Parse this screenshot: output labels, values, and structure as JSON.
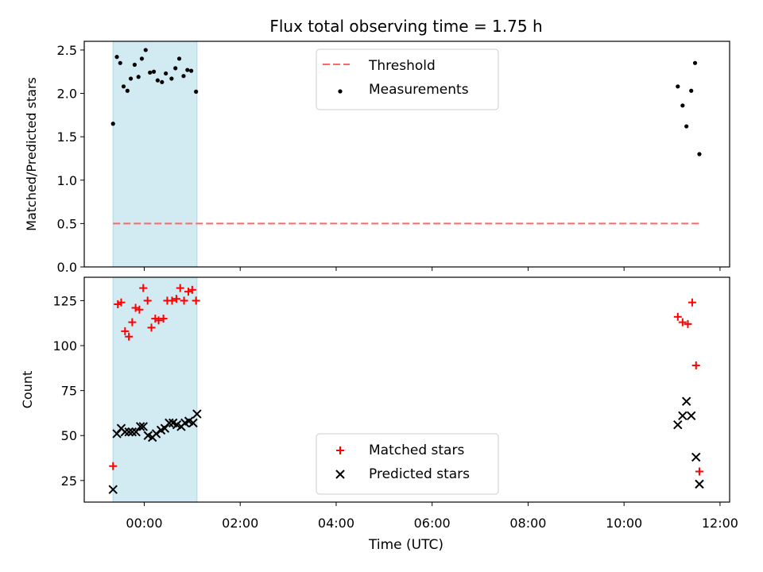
{
  "chart_data": {
    "title": "Flux total observing time = 1.75 h",
    "x_axis": {
      "label": "Time (UTC)",
      "unit": "hours since 00:00 UTC",
      "range": [
        -1.25,
        12.2
      ],
      "ticks": [
        {
          "value": 0,
          "label": "00:00"
        },
        {
          "value": 2,
          "label": "02:00"
        },
        {
          "value": 4,
          "label": "04:00"
        },
        {
          "value": 6,
          "label": "06:00"
        },
        {
          "value": 8,
          "label": "08:00"
        },
        {
          "value": 10,
          "label": "10:00"
        },
        {
          "value": 12,
          "label": "12:00"
        }
      ]
    },
    "shaded_span": {
      "x_start": -0.65,
      "x_end": 1.1,
      "color": "#add8e6"
    },
    "panels": [
      {
        "type": "scatter",
        "ylabel": "Matched/Predicted stars",
        "ylim": [
          0,
          2.6
        ],
        "yticks": [
          0.0,
          0.5,
          1.0,
          1.5,
          2.0,
          2.5
        ],
        "ytick_labels": [
          "0.0",
          "0.5",
          "1.0",
          "1.5",
          "2.0",
          "2.5"
        ],
        "legend_position": "top-center",
        "threshold": {
          "name": "Threshold",
          "value": 0.5,
          "x_start": -0.65,
          "x_end": 11.6,
          "color": "#ff6666"
        },
        "series": [
          {
            "name": "Measurements",
            "marker": "dot",
            "color": "#000000",
            "points": [
              [
                -0.65,
                1.65
              ],
              [
                -0.57,
                2.42
              ],
              [
                -0.5,
                2.35
              ],
              [
                -0.43,
                2.08
              ],
              [
                -0.35,
                2.03
              ],
              [
                -0.28,
                2.17
              ],
              [
                -0.2,
                2.33
              ],
              [
                -0.12,
                2.19
              ],
              [
                -0.05,
                2.4
              ],
              [
                0.03,
                2.5
              ],
              [
                0.12,
                2.24
              ],
              [
                0.2,
                2.25
              ],
              [
                0.28,
                2.15
              ],
              [
                0.37,
                2.13
              ],
              [
                0.45,
                2.23
              ],
              [
                0.57,
                2.17
              ],
              [
                0.65,
                2.29
              ],
              [
                0.73,
                2.4
              ],
              [
                0.82,
                2.2
              ],
              [
                0.9,
                2.27
              ],
              [
                0.98,
                2.26
              ],
              [
                1.08,
                2.02
              ],
              [
                11.12,
                2.08
              ],
              [
                11.22,
                1.86
              ],
              [
                11.3,
                1.62
              ],
              [
                11.4,
                2.03
              ],
              [
                11.48,
                2.35
              ],
              [
                11.57,
                1.3
              ]
            ]
          }
        ]
      },
      {
        "type": "scatter",
        "ylabel": "Count",
        "ylim": [
          13,
          138
        ],
        "yticks": [
          25,
          50,
          75,
          100,
          125
        ],
        "ytick_labels": [
          "25",
          "50",
          "75",
          "100",
          "125"
        ],
        "legend_position": "bottom-center",
        "series": [
          {
            "name": "Matched stars",
            "marker": "plus",
            "color": "#ff0000",
            "points": [
              [
                -0.65,
                33
              ],
              [
                -0.55,
                123
              ],
              [
                -0.48,
                124
              ],
              [
                -0.4,
                108
              ],
              [
                -0.32,
                105
              ],
              [
                -0.25,
                113
              ],
              [
                -0.18,
                121
              ],
              [
                -0.1,
                120
              ],
              [
                -0.02,
                132
              ],
              [
                0.07,
                125
              ],
              [
                0.15,
                110
              ],
              [
                0.23,
                115
              ],
              [
                0.3,
                114
              ],
              [
                0.4,
                115
              ],
              [
                0.48,
                125
              ],
              [
                0.58,
                125
              ],
              [
                0.67,
                126
              ],
              [
                0.75,
                132
              ],
              [
                0.83,
                125
              ],
              [
                0.92,
                130
              ],
              [
                1.0,
                131
              ],
              [
                1.08,
                125
              ],
              [
                11.12,
                116
              ],
              [
                11.22,
                113
              ],
              [
                11.33,
                112
              ],
              [
                11.42,
                124
              ],
              [
                11.5,
                89
              ],
              [
                11.57,
                30
              ]
            ]
          },
          {
            "name": "Predicted stars",
            "marker": "x",
            "color": "#000000",
            "points": [
              [
                -0.65,
                20
              ],
              [
                -0.57,
                51
              ],
              [
                -0.48,
                54
              ],
              [
                -0.4,
                52
              ],
              [
                -0.32,
                52
              ],
              [
                -0.25,
                52
              ],
              [
                -0.17,
                52
              ],
              [
                -0.08,
                55
              ],
              [
                -0.02,
                55
              ],
              [
                0.08,
                50
              ],
              [
                0.17,
                49
              ],
              [
                0.25,
                51
              ],
              [
                0.35,
                53
              ],
              [
                0.43,
                54
              ],
              [
                0.52,
                57
              ],
              [
                0.6,
                57
              ],
              [
                0.68,
                56
              ],
              [
                0.77,
                55
              ],
              [
                0.85,
                57
              ],
              [
                0.93,
                58
              ],
              [
                1.02,
                57
              ],
              [
                1.1,
                62
              ],
              [
                11.12,
                56
              ],
              [
                11.22,
                61
              ],
              [
                11.3,
                69
              ],
              [
                11.4,
                61
              ],
              [
                11.5,
                38
              ],
              [
                11.57,
                23
              ]
            ]
          }
        ]
      }
    ]
  }
}
